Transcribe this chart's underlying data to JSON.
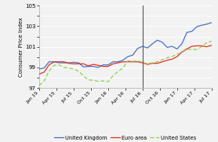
{
  "title": "",
  "ylabel": "Consumer Price Index",
  "ylim": [
    97,
    105
  ],
  "yticks": [
    97,
    98,
    99,
    100,
    101,
    102,
    103,
    104,
    105
  ],
  "ytick_labels": [
    "97",
    "",
    "99",
    "",
    "101",
    "",
    "103",
    "",
    "105"
  ],
  "x_labels": [
    "Jan 15",
    "Apr 15",
    "Jul 15",
    "Oct 15",
    "Jan 16",
    "Apr 16",
    "Jul 16",
    "Oct 16",
    "Jan 17",
    "Apr 17",
    "Jul 17"
  ],
  "vline_x_index": 6,
  "uk_color": "#4472C4",
  "euro_color": "#E0301E",
  "us_color": "#92D050",
  "background": "#f2f2f2",
  "plot_bg": "#f2f2f2",
  "grid_color": "#ffffff",
  "uk_data": [
    98.85,
    98.95,
    99.55,
    99.55,
    99.45,
    99.45,
    99.45,
    99.5,
    99.45,
    99.05,
    99.1,
    99.1,
    99.0,
    99.25,
    99.25,
    99.55,
    99.55,
    99.7,
    100.05,
    100.2,
    100.85,
    101.05,
    100.9,
    101.3,
    101.65,
    101.45,
    100.95,
    101.05,
    100.8,
    101.3,
    102.4,
    102.5,
    102.95,
    103.1,
    103.2,
    103.35
  ],
  "euro_data": [
    98.35,
    98.55,
    99.25,
    99.55,
    99.55,
    99.55,
    99.4,
    99.35,
    99.35,
    99.35,
    99.15,
    99.3,
    99.2,
    99.1,
    99.1,
    99.35,
    99.45,
    99.55,
    99.55,
    99.55,
    99.55,
    99.45,
    99.3,
    99.4,
    99.4,
    99.55,
    99.7,
    99.8,
    100.05,
    100.5,
    100.8,
    101.05,
    101.1,
    101.1,
    101.0,
    101.15
  ],
  "us_data": [
    97.25,
    97.7,
    98.65,
    99.2,
    99.25,
    99.0,
    98.95,
    98.85,
    98.65,
    98.15,
    97.8,
    97.75,
    97.65,
    97.7,
    97.6,
    98.2,
    98.6,
    98.95,
    99.65,
    99.6,
    99.65,
    99.5,
    99.35,
    99.45,
    99.55,
    99.75,
    99.95,
    100.05,
    100.3,
    100.45,
    100.75,
    100.75,
    100.75,
    101.0,
    101.4,
    101.55
  ],
  "legend_entries": [
    "United Kingdom",
    "Euro area",
    "United States"
  ],
  "linewidth": 0.9
}
